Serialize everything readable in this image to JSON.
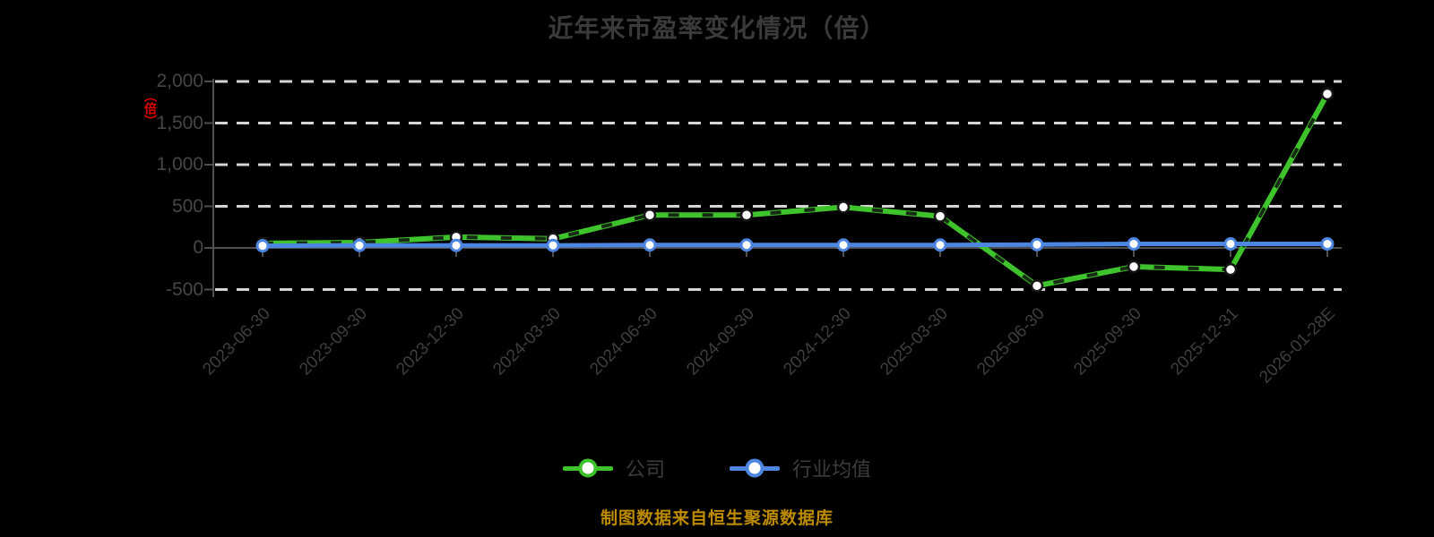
{
  "title": "近年来市盈率变化情况（倍）",
  "y_axis_unit": "（倍）",
  "footer_note": "制图数据来自恒生聚源数据库",
  "colors": {
    "company": "#3fc32c",
    "industry": "#4d86e0",
    "unit_label": "#e60000",
    "footer": "#bd8b00"
  },
  "legend": {
    "items": [
      {
        "label": "公司",
        "color": "#3fc32c"
      },
      {
        "label": "行业均值",
        "color": "#4d86e0"
      }
    ]
  },
  "chart_data": {
    "type": "line",
    "title": "近年来市盈率变化情况（倍）",
    "categories": [
      "2023-06-30",
      "2023-09-30",
      "2023-12-30",
      "2024-03-30",
      "2024-06-30",
      "2024-09-30",
      "2024-12-30",
      "2025-03-30",
      "2025-06-30",
      "2025-09-30",
      "2025-12-31",
      "2026-01-28E"
    ],
    "series": [
      {
        "name": "公司",
        "color": "#3fc32c",
        "values": [
          55,
          65,
          130,
          110,
          395,
          395,
          490,
          380,
          -455,
          -225,
          -260,
          1850
        ]
      },
      {
        "name": "行业均值",
        "color": "#4d86e0",
        "values": [
          25,
          30,
          30,
          30,
          35,
          35,
          35,
          35,
          40,
          48,
          48,
          48
        ]
      }
    ],
    "ylim": [
      -500,
      2000
    ],
    "yticks": [
      {
        "value": 2000,
        "label": "2,000"
      },
      {
        "value": 1500,
        "label": "1,500"
      },
      {
        "value": 1000,
        "label": "1,000"
      },
      {
        "value": 500,
        "label": "500"
      },
      {
        "value": 0,
        "label": "0"
      },
      {
        "value": -500,
        "label": "-500"
      }
    ],
    "grid": "horizontal-dashed",
    "legend_position": "bottom"
  }
}
